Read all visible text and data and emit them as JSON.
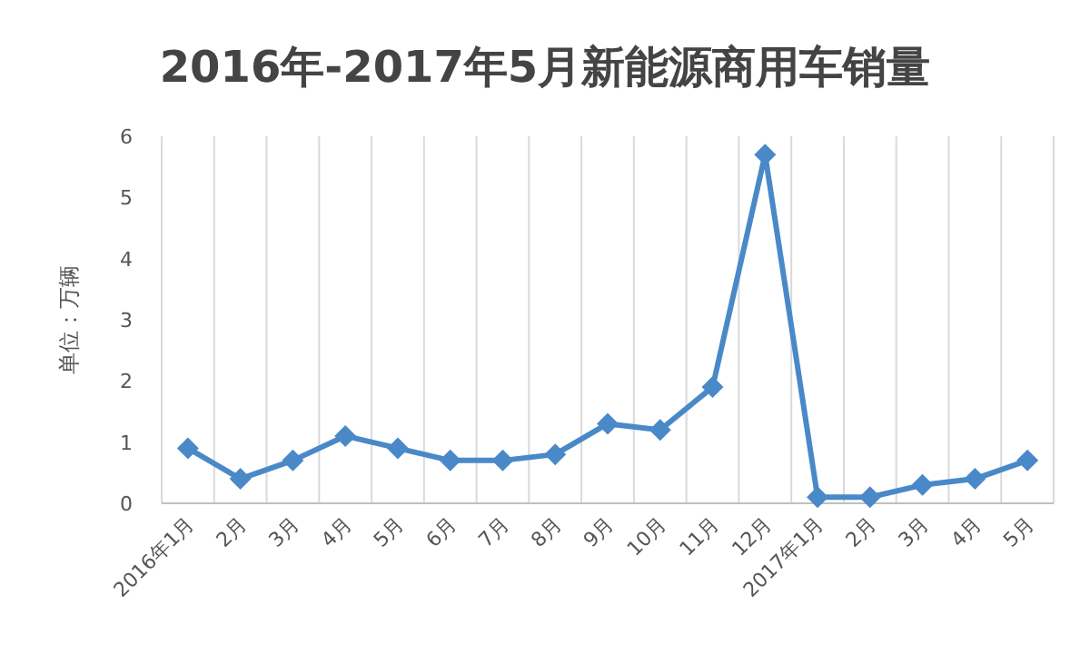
{
  "chart_data": {
    "type": "line",
    "title": "2016年-2017年5月新能源商用车销量",
    "ylabel": "单位：万辆",
    "categories": [
      "2016年1月",
      "2月",
      "3月",
      "4月",
      "5月",
      "6月",
      "7月",
      "8月",
      "9月",
      "10月",
      "11月",
      "12月",
      "2017年1月",
      "2月",
      "3月",
      "4月",
      "5月"
    ],
    "series": [
      {
        "color": "#4a89c8",
        "values": [
          0.9,
          0.4,
          0.7,
          1.1,
          0.9,
          0.7,
          0.7,
          0.8,
          1.3,
          1.2,
          1.9,
          5.7,
          0.1,
          0.1,
          0.3,
          0.4,
          0.7
        ]
      }
    ],
    "ylim": [
      0,
      6
    ],
    "yticks": [
      0,
      1,
      2,
      3,
      4,
      5,
      6
    ],
    "grid": "x",
    "marker": "diamond",
    "line_style": "solid"
  }
}
